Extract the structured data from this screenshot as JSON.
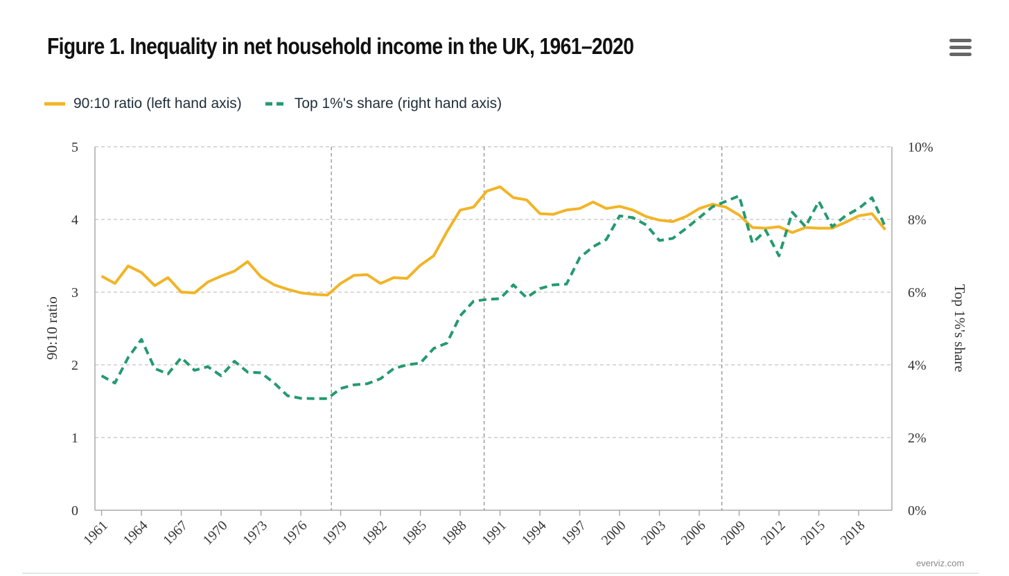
{
  "title": "Figure 1. Inequality in net household income in the UK, 1961–2020",
  "credit": "everviz.com",
  "menu_icon": "hamburger-menu-icon",
  "colors": {
    "ratio": "#f2b426",
    "share": "#249a6f",
    "grid": "#b3b3b3",
    "divider": "#888888"
  },
  "chart_data": {
    "type": "line",
    "title": "Figure 1. Inequality in net household income in the UK, 1961–2020",
    "x": [
      1961,
      1962,
      1963,
      1964,
      1965,
      1966,
      1967,
      1968,
      1969,
      1970,
      1971,
      1972,
      1973,
      1974,
      1975,
      1976,
      1977,
      1978,
      1979,
      1980,
      1981,
      1982,
      1983,
      1984,
      1985,
      1986,
      1987,
      1988,
      1989,
      1990,
      1991,
      1992,
      1993,
      1994,
      1995,
      1996,
      1997,
      1998,
      1999,
      2000,
      2001,
      2002,
      2003,
      2004,
      2005,
      2006,
      2007,
      2008,
      2009,
      2010,
      2011,
      2012,
      2013,
      2014,
      2015,
      2016,
      2017,
      2018,
      2019,
      2020
    ],
    "x_ticks": [
      "1961",
      "1964",
      "1967",
      "1970",
      "1973",
      "1976",
      "1979",
      "1982",
      "1985",
      "1988",
      "1991",
      "1994",
      "1997",
      "2000",
      "2003",
      "2006",
      "2009",
      "2012",
      "2015",
      "2018"
    ],
    "xlim": [
      1960.5,
      2020.5
    ],
    "vertical_lines": [
      1978.3,
      1989.8,
      2007.7
    ],
    "grid": true,
    "legend_position": "top-left",
    "left_axis": {
      "label": "90:10 ratio",
      "ylim": [
        0,
        5
      ],
      "ticks": [
        "0",
        "1",
        "2",
        "3",
        "4",
        "5"
      ]
    },
    "right_axis": {
      "label": "Top 1%'s share",
      "ylim": [
        0,
        10
      ],
      "ticks": [
        "0%",
        "2%",
        "4%",
        "6%",
        "8%",
        "10%"
      ]
    },
    "series": [
      {
        "name": "90:10 ratio (left hand axis)",
        "axis": "left",
        "style": "solid",
        "values": [
          3.22,
          3.12,
          3.36,
          3.27,
          3.09,
          3.2,
          3.0,
          2.99,
          3.14,
          3.22,
          3.29,
          3.42,
          3.21,
          3.1,
          3.04,
          2.99,
          2.97,
          2.96,
          3.12,
          3.23,
          3.24,
          3.12,
          3.2,
          3.19,
          3.37,
          3.5,
          3.83,
          4.13,
          4.17,
          4.39,
          4.45,
          4.3,
          4.27,
          4.08,
          4.07,
          4.13,
          4.15,
          4.24,
          4.15,
          4.18,
          4.13,
          4.04,
          3.99,
          3.97,
          4.04,
          4.15,
          4.21,
          4.17,
          4.06,
          3.89,
          3.88,
          3.9,
          3.82,
          3.89,
          3.88,
          3.88,
          3.96,
          4.05,
          4.08,
          3.86
        ]
      },
      {
        "name": "Top 1%'s share (right hand axis)",
        "axis": "right",
        "style": "dashed",
        "values": [
          3.7,
          3.5,
          4.2,
          4.7,
          3.9,
          3.75,
          4.2,
          3.85,
          3.95,
          3.7,
          4.1,
          3.8,
          3.78,
          3.5,
          3.15,
          3.08,
          3.07,
          3.07,
          3.35,
          3.45,
          3.48,
          3.62,
          3.9,
          4.0,
          4.05,
          4.45,
          4.6,
          5.35,
          5.75,
          5.8,
          5.82,
          6.2,
          5.85,
          6.1,
          6.2,
          6.22,
          6.95,
          7.25,
          7.45,
          8.1,
          8.05,
          7.85,
          7.42,
          7.48,
          7.75,
          8.05,
          8.35,
          8.5,
          8.65,
          7.35,
          7.7,
          7.0,
          8.2,
          7.8,
          8.5,
          7.8,
          8.1,
          8.3,
          8.6,
          7.8
        ]
      }
    ]
  }
}
